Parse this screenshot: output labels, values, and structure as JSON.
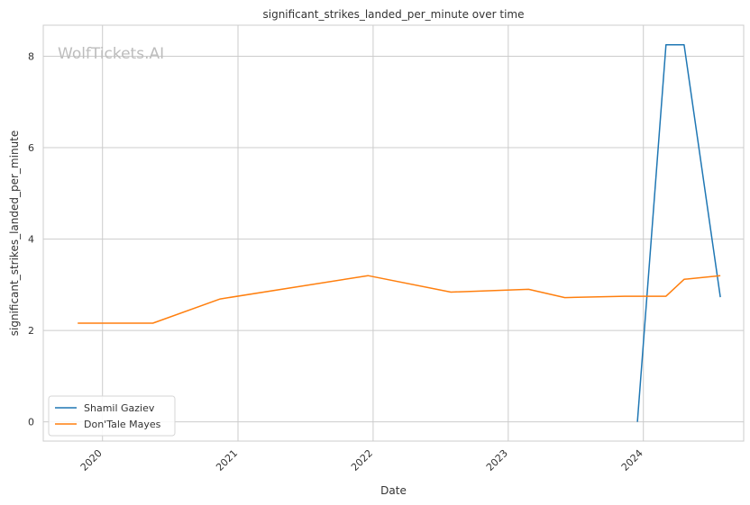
{
  "chart_data": {
    "type": "line",
    "title": "significant_strikes_landed_per_minute over time",
    "xlabel": "Date",
    "ylabel": "significant_strikes_landed_per_minute",
    "watermark": "WolfTickets.AI",
    "xlim": [
      "2019-07-25",
      "2024-09-28"
    ],
    "ylim": [
      -0.42,
      8.68
    ],
    "x_ticks": [
      "2020-01-01",
      "2021-01-01",
      "2022-01-01",
      "2023-01-01",
      "2024-01-01"
    ],
    "x_tick_labels": [
      "2020",
      "2021",
      "2022",
      "2023",
      "2024"
    ],
    "y_ticks": [
      0,
      2,
      4,
      6,
      8
    ],
    "y_tick_labels": [
      "0",
      "2",
      "4",
      "6",
      "8"
    ],
    "grid": true,
    "legend_position": "lower-left",
    "series": [
      {
        "name": "Shamil Gaziev",
        "color": "#1f77b4",
        "x": [
          "2023-12-16",
          "2024-03-02",
          "2024-04-20",
          "2024-07-27"
        ],
        "y": [
          0.0,
          8.25,
          8.25,
          2.73
        ]
      },
      {
        "name": "Don'Tale Mayes",
        "color": "#ff7f0e",
        "x": [
          "2019-10-26",
          "2020-05-16",
          "2020-11-14",
          "2021-12-18",
          "2022-07-30",
          "2023-02-25",
          "2023-06-03",
          "2023-11-11",
          "2024-03-02",
          "2024-04-20",
          "2024-07-27"
        ],
        "y": [
          2.16,
          2.16,
          2.69,
          3.2,
          2.84,
          2.9,
          2.72,
          2.75,
          2.75,
          3.12,
          3.2
        ]
      }
    ]
  }
}
